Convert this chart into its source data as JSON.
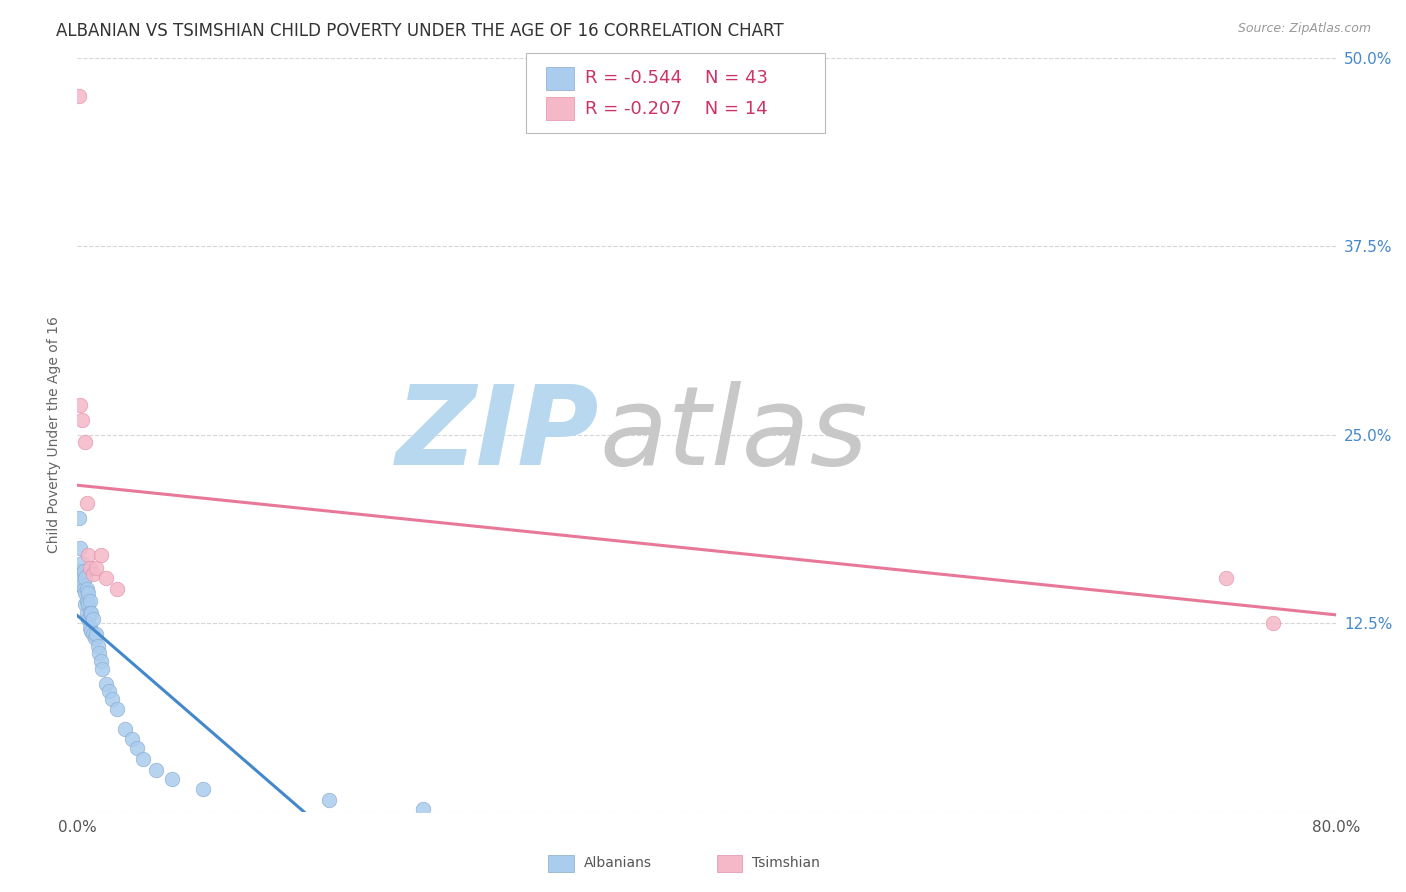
{
  "title": "ALBANIAN VS TSIMSHIAN CHILD POVERTY UNDER THE AGE OF 16 CORRELATION CHART",
  "source": "Source: ZipAtlas.com",
  "ylabel": "Child Poverty Under the Age of 16",
  "xlim": [
    0.0,
    0.8
  ],
  "ylim": [
    0.0,
    0.5
  ],
  "ytick_positions": [
    0.0,
    0.125,
    0.25,
    0.375,
    0.5
  ],
  "ytick_labels": [
    "",
    "12.5%",
    "25.0%",
    "37.5%",
    "50.0%"
  ],
  "background_color": "#ffffff",
  "grid_color": "#cccccc",
  "albanian_color": "#aaccee",
  "albanian_edge_color": "#88aacc",
  "tsimshian_color": "#f5b8c8",
  "tsimshian_edge_color": "#e090a8",
  "albanian_line_color": "#4488cc",
  "tsimshian_line_color": "#e87898",
  "legend_text_color": "#cc3366",
  "legend_albanian_R": "R = -0.544",
  "legend_albanian_N": "N = 43",
  "legend_tsimshian_R": "R = -0.207",
  "legend_tsimshian_N": "N = 14",
  "albanian_x": [
    0.001,
    0.002,
    0.002,
    0.003,
    0.003,
    0.003,
    0.004,
    0.004,
    0.005,
    0.005,
    0.005,
    0.006,
    0.006,
    0.006,
    0.007,
    0.007,
    0.007,
    0.008,
    0.008,
    0.008,
    0.009,
    0.009,
    0.01,
    0.01,
    0.011,
    0.012,
    0.013,
    0.014,
    0.015,
    0.016,
    0.018,
    0.02,
    0.022,
    0.025,
    0.03,
    0.035,
    0.038,
    0.042,
    0.05,
    0.06,
    0.08,
    0.16,
    0.22
  ],
  "albanian_y": [
    0.195,
    0.175,
    0.16,
    0.165,
    0.155,
    0.15,
    0.16,
    0.148,
    0.155,
    0.145,
    0.138,
    0.148,
    0.14,
    0.132,
    0.145,
    0.138,
    0.128,
    0.14,
    0.132,
    0.122,
    0.132,
    0.12,
    0.128,
    0.118,
    0.115,
    0.118,
    0.11,
    0.105,
    0.1,
    0.095,
    0.085,
    0.08,
    0.075,
    0.068,
    0.055,
    0.048,
    0.042,
    0.035,
    0.028,
    0.022,
    0.015,
    0.008,
    0.002
  ],
  "tsimshian_x": [
    0.001,
    0.002,
    0.003,
    0.005,
    0.006,
    0.007,
    0.008,
    0.01,
    0.012,
    0.015,
    0.018,
    0.025,
    0.73,
    0.76
  ],
  "tsimshian_y": [
    0.475,
    0.27,
    0.26,
    0.245,
    0.205,
    0.17,
    0.162,
    0.158,
    0.162,
    0.17,
    0.155,
    0.148,
    0.155,
    0.125
  ],
  "trendline_albanian_x0": 0.0,
  "trendline_albanian_x1": 0.165,
  "trendline_tsimshian_x0": 0.0,
  "trendline_tsimshian_x1": 0.8,
  "marker_size": 110,
  "title_fontsize": 12,
  "axis_label_fontsize": 10,
  "tick_fontsize": 11,
  "legend_fontsize": 13,
  "source_fontsize": 9
}
